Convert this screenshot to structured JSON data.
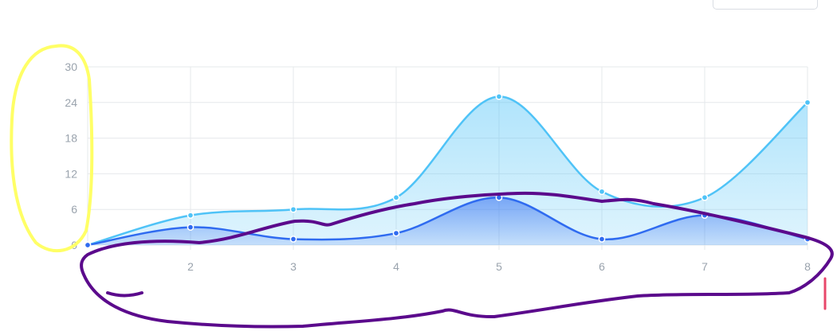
{
  "chart_data": {
    "type": "area",
    "x": [
      1,
      2,
      3,
      4,
      5,
      6,
      7,
      8
    ],
    "series": [
      {
        "values": [
          0,
          5,
          6,
          8,
          25,
          9,
          8,
          24
        ],
        "color": "#4fc3f7"
      },
      {
        "values": [
          0,
          3,
          1,
          2,
          8,
          1,
          5,
          1
        ],
        "color": "#2f6bf0"
      }
    ],
    "xticks": [
      "2",
      "3",
      "4",
      "5",
      "6",
      "7",
      "8"
    ],
    "yticks": [
      "0",
      "6",
      "12",
      "18",
      "24",
      "30"
    ],
    "xlim": [
      1,
      8
    ],
    "ylim": [
      0,
      30
    ],
    "grid": true,
    "smooth": true
  },
  "annotations": {
    "yellow": "#ffff66",
    "purple": "#5b0a8c",
    "red": "#e8476a"
  }
}
